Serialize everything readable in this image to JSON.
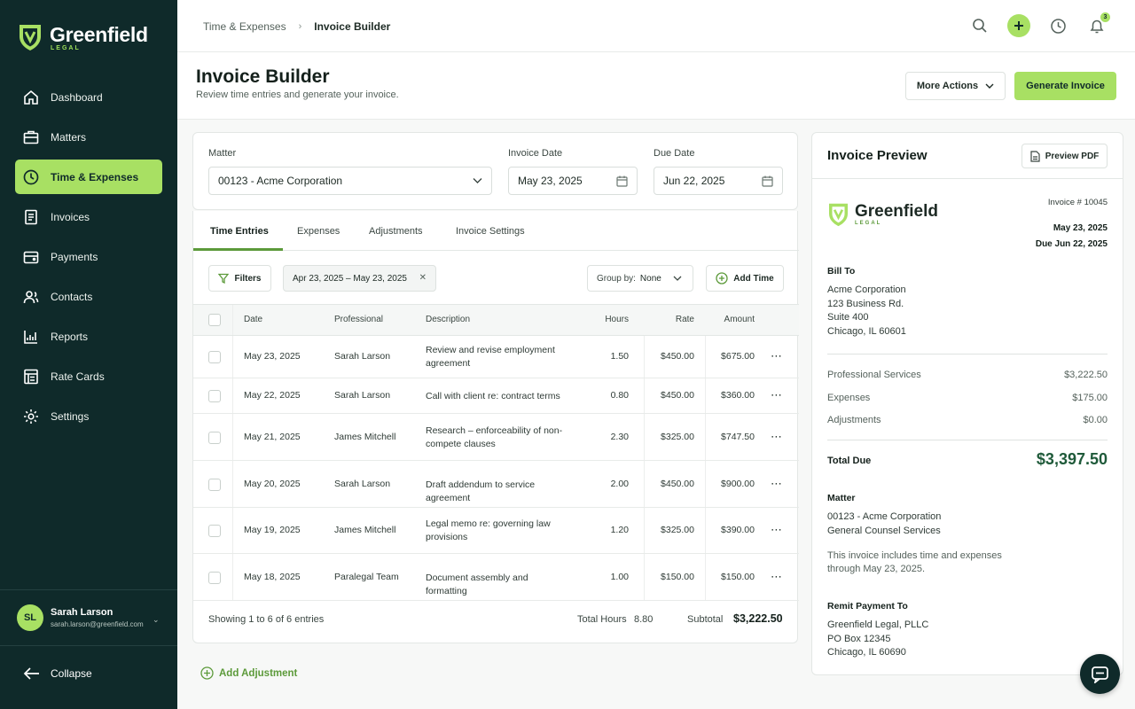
{
  "brand": {
    "name": "Greenfield",
    "sub": "LEGAL"
  },
  "sidebar": {
    "items": [
      {
        "label": "Dashboard",
        "icon": "home-icon"
      },
      {
        "label": "Matters",
        "icon": "briefcase-icon"
      },
      {
        "label": "Time & Expenses",
        "icon": "clock-icon",
        "active": true
      },
      {
        "label": "Invoices",
        "icon": "invoice-icon"
      },
      {
        "label": "Payments",
        "icon": "wallet-icon"
      },
      {
        "label": "Contacts",
        "icon": "contacts-icon"
      },
      {
        "label": "Reports",
        "icon": "chart-icon"
      },
      {
        "label": "Rate Cards",
        "icon": "rate-card-icon"
      },
      {
        "label": "Settings",
        "icon": "gear-icon"
      }
    ],
    "user": {
      "initials": "SL",
      "name": "Sarah Larson",
      "email": "sarah.larson@greenfield.com"
    },
    "collapse_label": "Collapse"
  },
  "header": {
    "breadcrumb": [
      "Time & Expenses",
      "Invoice Builder"
    ],
    "notification_count": "3"
  },
  "page": {
    "title": "Invoice Builder",
    "subtitle": "Review time entries and generate your invoice.",
    "more_actions": "More Actions",
    "generate": "Generate Invoice"
  },
  "form": {
    "matter_label": "Matter",
    "matter_value": "00123 - Acme Corporation",
    "invoice_date_label": "Invoice Date",
    "invoice_date_value": "May 23, 2025",
    "due_date_label": "Due Date",
    "due_date_value": "Jun 22, 2025"
  },
  "tabs": [
    "Time Entries",
    "Expenses",
    "Adjustments",
    "Invoice Settings"
  ],
  "toolbar": {
    "filters": "Filters",
    "date_range": "Apr 23, 2025 – May 23, 2025",
    "group_by_label": "Group by:",
    "group_by_value": "None",
    "add_time": "Add Time"
  },
  "table": {
    "columns": [
      "Date",
      "Professional",
      "Description",
      "Hours",
      "Rate",
      "Amount"
    ],
    "rows": [
      {
        "date": "May 23, 2025",
        "professional": "Sarah Larson",
        "description": "Review and revise employment agreement",
        "hours": "1.50",
        "rate": "$450.00",
        "amount": "$675.00"
      },
      {
        "date": "May 22, 2025",
        "professional": "Sarah Larson",
        "description": "Call with client re: contract terms",
        "hours": "0.80",
        "rate": "$450.00",
        "amount": "$360.00"
      },
      {
        "date": "May 21, 2025",
        "professional": "James Mitchell",
        "description": "Research – enforceability of non-compete clauses",
        "hours": "2.30",
        "rate": "$325.00",
        "amount": "$747.50"
      },
      {
        "date": "May 20, 2025",
        "professional": "Sarah Larson",
        "description": "Draft addendum to service agreement",
        "hours": "2.00",
        "rate": "$450.00",
        "amount": "$900.00"
      },
      {
        "date": "May 19, 2025",
        "professional": "James Mitchell",
        "description": "Legal memo re: governing law provisions",
        "hours": "1.20",
        "rate": "$325.00",
        "amount": "$390.00"
      },
      {
        "date": "May 18, 2025",
        "professional": "Paralegal Team",
        "description": "Document assembly and formatting",
        "hours": "1.00",
        "rate": "$150.00",
        "amount": "$150.00"
      }
    ],
    "showing": "Showing 1 to 6 of 6 entries",
    "total_hours_label": "Total Hours",
    "total_hours": "8.80",
    "subtotal_label": "Subtotal",
    "subtotal": "$3,222.50"
  },
  "add_adjustment": "Add Adjustment",
  "preview": {
    "title": "Invoice Preview",
    "pdf_button": "Preview PDF",
    "invoice_number": "Invoice # 10045",
    "date": "May 23, 2025",
    "due": "Due Jun 22, 2025",
    "bill_to_label": "Bill To",
    "bill_to": [
      "Acme Corporation",
      "123 Business Rd.",
      "Suite 400",
      "Chicago, IL 60601"
    ],
    "lines": [
      {
        "label": "Professional Services",
        "value": "$3,222.50"
      },
      {
        "label": "Expenses",
        "value": "$175.00"
      },
      {
        "label": "Adjustments",
        "value": "$0.00"
      }
    ],
    "total_label": "Total Due",
    "total": "$3,397.50",
    "matter_label": "Matter",
    "matter": [
      "00123 - Acme Corporation",
      "General Counsel Services"
    ],
    "note": [
      "This invoice includes time and expenses",
      "through May 23, 2025."
    ],
    "remit_label": "Remit Payment To",
    "remit": [
      "Greenfield Legal, PLLC",
      "PO Box 12345",
      "Chicago, IL 60690"
    ]
  },
  "colors": {
    "sidebar": "#0f2a2a",
    "accent": "#a8e063",
    "accent_dark": "#5c9a3a",
    "total": "#1f5a3a"
  }
}
